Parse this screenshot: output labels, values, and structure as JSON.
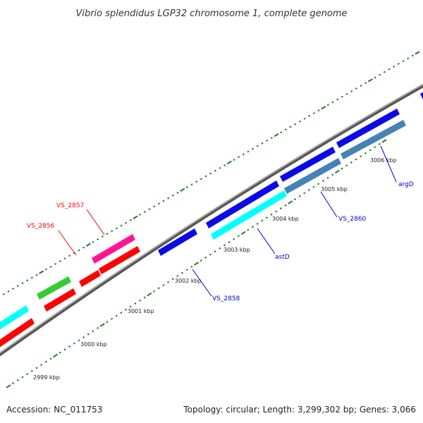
{
  "title": "Vibrio splendidus LGP32 chromosome 1, complete genome",
  "footer": {
    "accession": "Accession: NC_011753",
    "summary": "Topology: circular; Length: 3,299,302 bp; Genes: 3,066"
  },
  "scale_labels": [
    "2999 kbp",
    "3000 kbp",
    "3001 kbp",
    "3002 kbp",
    "3003 kbp",
    "3004 kbp",
    "3005 kbp",
    "3006 kbp"
  ],
  "gene_labels": [
    {
      "name": "VS_2856",
      "color": "#ff0000"
    },
    {
      "name": "VS_2857",
      "color": "#ff0000"
    },
    {
      "name": "VS_2858",
      "color": "#0000cc"
    },
    {
      "name": "astD",
      "color": "#0000cc"
    },
    {
      "name": "VS_2860",
      "color": "#0000cc"
    },
    {
      "name": "argD",
      "color": "#0000cc"
    }
  ],
  "colors": {
    "backbone": "#8c8c8c",
    "tick": "#1e7a1e",
    "red": "#ff0000",
    "blue": "#0a0ae6",
    "cyan": "#00ffff",
    "steel": "#4682b4",
    "green": "#33cc33",
    "pink": "#ff1493"
  }
}
